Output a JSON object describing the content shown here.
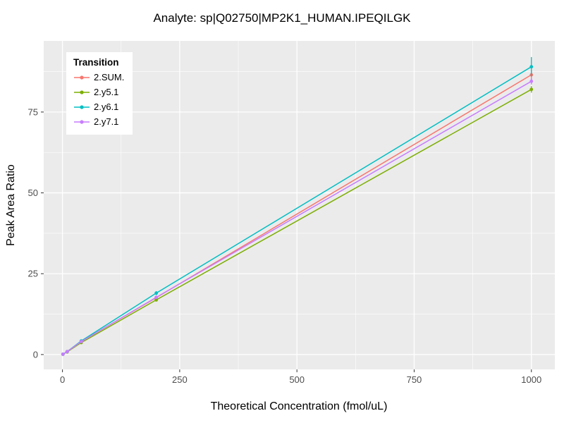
{
  "title": "Analyte: sp|Q02750|MP2K1_HUMAN.IPEQILGK",
  "chart_data": {
    "type": "line",
    "title": "Analyte: sp|Q02750|MP2K1_HUMAN.IPEQILGK",
    "xlabel": "Theoretical Concentration (fmol/uL)",
    "ylabel": "Peak Area Ratio",
    "xlim": [
      -40,
      1050
    ],
    "ylim": [
      -4.6,
      97
    ],
    "x_ticks": [
      0,
      250,
      500,
      750,
      1000
    ],
    "y_ticks": [
      0,
      25,
      50,
      75
    ],
    "x_minor_ticks": [
      125,
      375,
      625,
      875
    ],
    "y_minor_ticks": [
      12.5,
      37.5,
      62.5,
      87.5
    ],
    "grid": true,
    "panel_color": "#EBEBEB",
    "grid_color": "#FFFFFF",
    "tick_color": "#333333",
    "tick_label_color": "#4D4D4D",
    "legend": {
      "title": "Transition",
      "position": "top-left-inside"
    },
    "x": [
      1,
      10,
      40,
      200,
      1000
    ],
    "series": [
      {
        "name": "2.SUM.",
        "color": "#F8766D",
        "values": [
          0.1,
          0.9,
          4.0,
          17.6,
          86.5
        ],
        "errors": [
          0,
          0,
          0,
          0.4,
          1.5
        ]
      },
      {
        "name": "2.y5.1",
        "color": "#7CAE00",
        "values": [
          0.1,
          0.8,
          3.7,
          16.9,
          82.0
        ],
        "errors": [
          0,
          0,
          0,
          0.3,
          1.0
        ]
      },
      {
        "name": "2.y6.1",
        "color": "#00BFC4",
        "values": [
          0.1,
          0.9,
          4.2,
          19.0,
          89.0
        ],
        "errors": [
          0,
          0,
          0,
          0.6,
          3.0
        ]
      },
      {
        "name": "2.y7.1",
        "color": "#C77CFF",
        "values": [
          0.1,
          0.9,
          4.0,
          17.7,
          84.5
        ],
        "errors": [
          0,
          0,
          0,
          0.4,
          1.0
        ]
      }
    ]
  }
}
